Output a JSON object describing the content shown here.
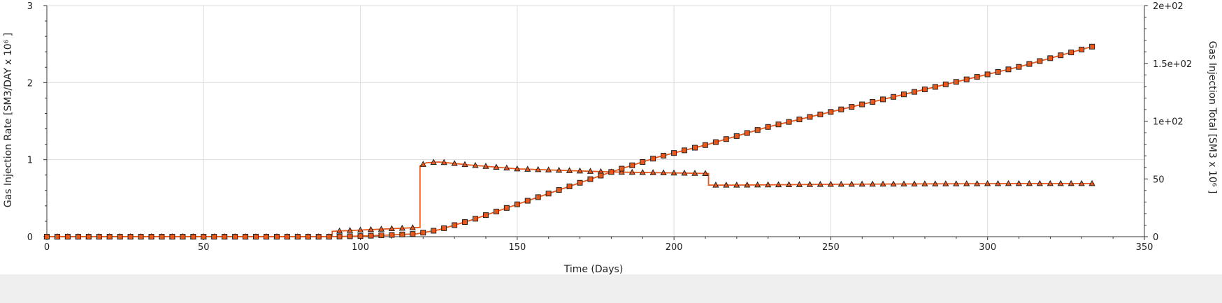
{
  "chart_data": {
    "type": "line",
    "xlabel": "Time (Days)",
    "ylabel_left": "Gas Injection Rate [SM3/DAY x 10⁶ ]",
    "ylabel_right": "Gas Injection Total [SM3 x 10⁶ ]",
    "xlim": [
      0,
      350
    ],
    "ylim_left": [
      0,
      3
    ],
    "ylim_right": [
      0,
      200
    ],
    "x_ticks": [
      "0",
      "50",
      "100",
      "150",
      "200",
      "250",
      "300",
      "350"
    ],
    "y_left_ticks": [
      "0",
      "1",
      "2",
      "3"
    ],
    "y_right_ticks": [
      "0",
      "50",
      "1e+02",
      "1.5e+02",
      "2e+02"
    ],
    "grid": true,
    "colors": {
      "line": "#e8581a",
      "marker_fill": "#e8581a",
      "marker_edge": "#222222"
    },
    "series": [
      {
        "axis": "left",
        "marker": "triangle",
        "x": [
          0,
          91,
          91,
          119,
          119,
          121,
          125,
          135,
          150,
          165,
          180,
          195,
          211,
          211,
          220,
          250,
          280,
          310,
          334
        ],
        "y": [
          0,
          0,
          0.07,
          0.12,
          0.92,
          0.96,
          0.97,
          0.93,
          0.88,
          0.86,
          0.84,
          0.83,
          0.82,
          0.67,
          0.67,
          0.68,
          0.685,
          0.69,
          0.69
        ]
      },
      {
        "axis": "right",
        "marker": "square",
        "x": [
          0,
          90,
          100,
          110,
          118,
          125,
          135,
          150,
          165,
          180,
          195,
          211,
          230,
          250,
          270,
          290,
          310,
          334
        ],
        "y": [
          0,
          0,
          0.5,
          1.5,
          2.5,
          6,
          14,
          28,
          42,
          56,
          69,
          80,
          95,
          108,
          121,
          134,
          147,
          165
        ]
      }
    ]
  }
}
